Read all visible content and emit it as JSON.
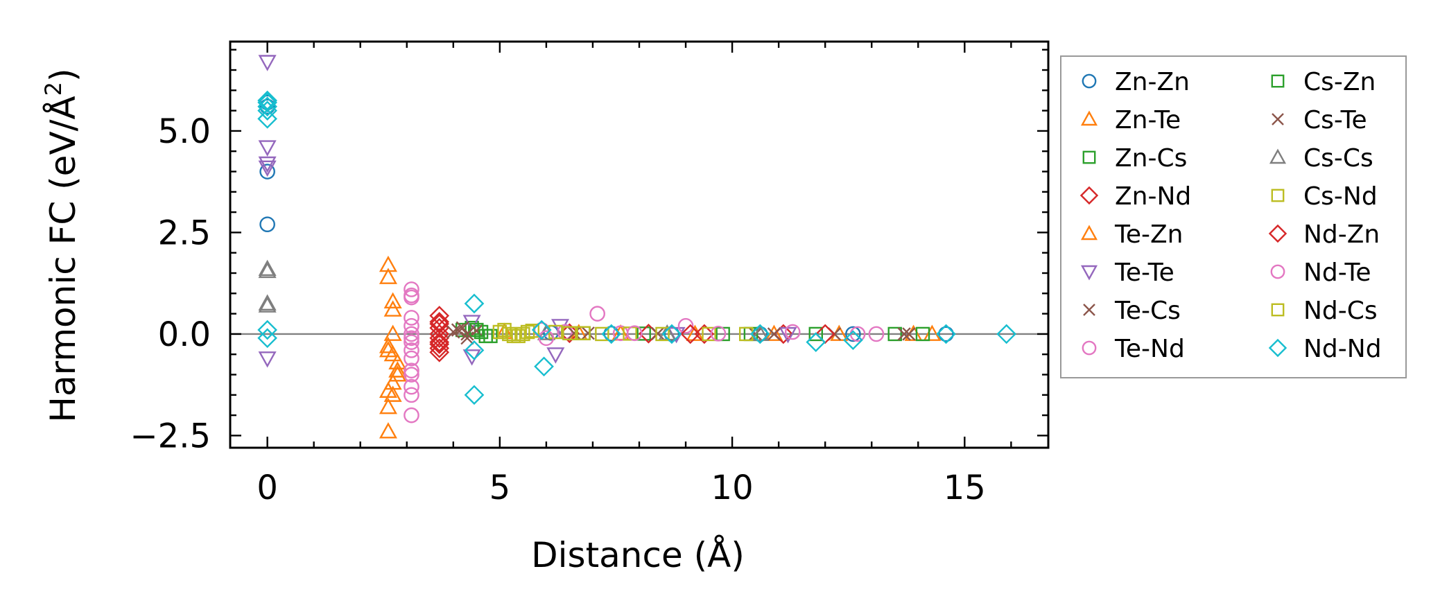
{
  "chart_data": {
    "type": "scatter",
    "xlabel": "Distance (Å)",
    "ylabel_text": "Harmonic FC (eV/Å",
    "ylabel_sup": "2",
    "ylabel_close": ")",
    "xlim": [
      -0.8,
      16.8
    ],
    "ylim": [
      -2.8,
      7.2
    ],
    "xticks": [
      0,
      5,
      10,
      15
    ],
    "xtick_labels": [
      "0",
      "5",
      "10",
      "15"
    ],
    "yticks": [
      -2.5,
      0.0,
      2.5,
      5.0
    ],
    "ytick_labels": [
      "−2.5",
      "0.0",
      "2.5",
      "5.0"
    ],
    "reference_line_y": 0,
    "legend_position": "outside-right",
    "series": [
      {
        "name": "Zn-Zn",
        "marker": "circle",
        "color": "#1f77b4",
        "x": [
          0,
          0,
          0,
          0,
          6.1,
          7.4,
          8.7,
          10.6,
          12.6,
          14.6
        ],
        "y": [
          4.0,
          2.7,
          5.6,
          5.7,
          0.03,
          0.01,
          0.0,
          0.0,
          0.0,
          0.0
        ]
      },
      {
        "name": "Zn-Te",
        "marker": "triangle-up",
        "color": "#ff7f0e",
        "x": [
          2.6,
          2.6,
          2.6,
          2.6,
          2.7,
          2.7,
          2.8,
          2.8,
          2.6,
          2.7,
          2.8,
          2.7,
          5.1,
          6.7,
          7.6,
          9.2,
          10.9,
          12.3,
          14.3
        ],
        "y": [
          1.7,
          1.4,
          -1.4,
          -1.8,
          0.8,
          0.6,
          -0.9,
          -1.0,
          -0.4,
          -0.5,
          -0.7,
          -1.2,
          0.05,
          0.02,
          0.01,
          0.0,
          0.0,
          0.0,
          0.0
        ]
      },
      {
        "name": "Zn-Cs",
        "marker": "square",
        "color": "#2ca02c",
        "x": [
          4.2,
          4.4,
          4.6,
          4.8,
          6.8,
          8.1,
          9.8,
          11.8,
          13.5
        ],
        "y": [
          0.1,
          0.15,
          0.05,
          -0.05,
          0.02,
          0.01,
          0.0,
          0.0,
          0.0
        ]
      },
      {
        "name": "Zn-Nd",
        "marker": "diamond",
        "color": "#d62728",
        "x": [
          3.7,
          3.7,
          3.7,
          3.7,
          3.7,
          3.7,
          3.7,
          3.7,
          6.5,
          8.2,
          9.4,
          11.1
        ],
        "y": [
          0.45,
          0.3,
          0.15,
          0.0,
          -0.1,
          -0.2,
          -0.35,
          -0.45,
          0.02,
          0.01,
          0.0,
          0.0
        ]
      },
      {
        "name": "Te-Zn",
        "marker": "triangle-up",
        "color": "#ff7f0e",
        "x": [
          2.6,
          2.7,
          2.8,
          2.6,
          2.7,
          13.9
        ],
        "y": [
          -2.4,
          -1.5,
          -0.9,
          -0.3,
          0.0,
          0.0
        ]
      },
      {
        "name": "Te-Te",
        "marker": "triangle-down",
        "color": "#9467bd",
        "x": [
          0,
          0,
          0,
          0,
          0,
          4.4,
          4.4,
          6.2,
          6.3,
          8.8,
          11.2
        ],
        "y": [
          6.7,
          4.6,
          4.2,
          4.1,
          -0.6,
          -0.55,
          0.3,
          -0.5,
          0.2,
          0.0,
          0.0
        ]
      },
      {
        "name": "Te-Cs",
        "marker": "x",
        "color": "#8c564b",
        "x": [
          4.0,
          4.2,
          4.3,
          4.5,
          6.9,
          8.4,
          10.5,
          12.2,
          13.8
        ],
        "y": [
          0.05,
          0.15,
          -0.1,
          0.08,
          0.02,
          0.01,
          0.0,
          0.0,
          0.0
        ]
      },
      {
        "name": "Te-Nd",
        "marker": "circle",
        "color": "#e377c2",
        "x": [
          3.1,
          3.1,
          3.1,
          3.1,
          3.1,
          3.1,
          3.1,
          3.1,
          3.1,
          3.1,
          3.1,
          3.1,
          5.9,
          6.4,
          7.1,
          7.6,
          9.0,
          11.3,
          13.1
        ],
        "y": [
          1.1,
          0.95,
          0.4,
          0.2,
          0.0,
          -0.2,
          -0.4,
          -0.6,
          -0.9,
          -1.0,
          -1.5,
          -2.0,
          0.1,
          0.05,
          0.5,
          0.02,
          0.2,
          0.05,
          0.0
        ]
      },
      {
        "name": "Cs-Zn",
        "marker": "square",
        "color": "#2ca02c",
        "x": [
          4.5,
          4.7,
          6.8,
          10.4,
          14.1
        ],
        "y": [
          0.1,
          -0.05,
          0.02,
          0.0,
          0.0
        ]
      },
      {
        "name": "Cs-Te",
        "marker": "x",
        "color": "#8c564b",
        "x": [
          4.1,
          4.3,
          6.6,
          10.9,
          13.7
        ],
        "y": [
          0.1,
          0.0,
          0.02,
          0.0,
          0.0
        ]
      },
      {
        "name": "Cs-Cs",
        "marker": "triangle-up",
        "color": "#7f7f7f",
        "x": [
          0,
          0,
          0,
          0,
          6.0,
          8.6,
          10.6
        ],
        "y": [
          1.6,
          1.55,
          0.75,
          0.7,
          0.02,
          0.01,
          0.0
        ]
      },
      {
        "name": "Cs-Nd",
        "marker": "square",
        "color": "#bcbd22",
        "x": [
          5.0,
          5.1,
          5.3,
          5.5,
          5.7,
          6.2,
          6.8,
          7.8,
          8.5,
          9.5,
          10.3
        ],
        "y": [
          0.05,
          0.1,
          -0.05,
          0.0,
          0.08,
          0.05,
          0.02,
          0.01,
          0.0,
          0.0,
          0.0
        ]
      },
      {
        "name": "Nd-Zn",
        "marker": "diamond",
        "color": "#d62728",
        "x": [
          3.7,
          3.7,
          9.1,
          12.0
        ],
        "y": [
          -0.25,
          0.25,
          0.0,
          0.0
        ]
      },
      {
        "name": "Nd-Te",
        "marker": "circle",
        "color": "#e377c2",
        "x": [
          3.1,
          3.1,
          3.1,
          6.0,
          7.9,
          9.7,
          12.7
        ],
        "y": [
          0.9,
          -0.1,
          -1.3,
          -0.1,
          0.02,
          0.01,
          0.0
        ]
      },
      {
        "name": "Nd-Cs",
        "marker": "square",
        "color": "#bcbd22",
        "x": [
          5.2,
          5.4,
          5.6,
          6.5,
          7.2
        ],
        "y": [
          0.0,
          -0.05,
          0.05,
          0.02,
          0.0
        ]
      },
      {
        "name": "Nd-Nd",
        "marker": "diamond",
        "color": "#17becf",
        "x": [
          0,
          0,
          0,
          0,
          0,
          0,
          0,
          4.45,
          4.45,
          4.45,
          5.9,
          5.95,
          7.4,
          8.7,
          10.6,
          11.8,
          12.6,
          14.6,
          15.9
        ],
        "y": [
          5.7,
          5.6,
          5.3,
          0.1,
          -0.1,
          5.5,
          5.75,
          0.75,
          -0.4,
          -1.5,
          0.1,
          -0.8,
          0.0,
          0.0,
          0.0,
          -0.2,
          -0.15,
          0.0,
          0.0
        ]
      }
    ]
  }
}
